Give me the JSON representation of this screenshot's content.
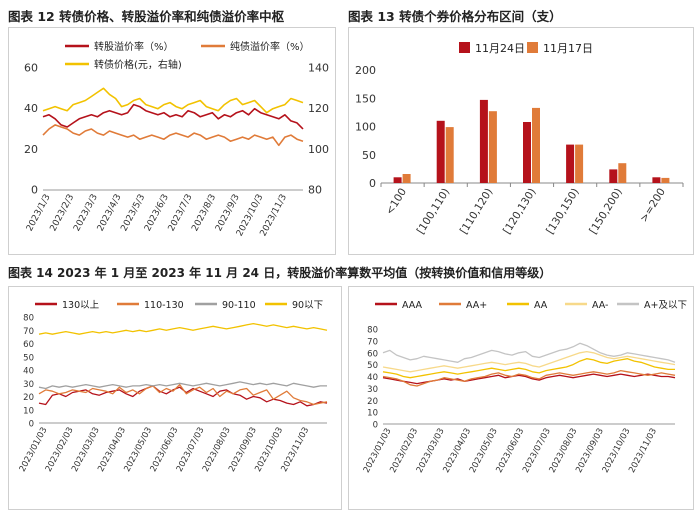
{
  "titles": {
    "fig12": "图表 12  转债价格、转股溢价率和纯债溢价率中枢",
    "fig13": "图表 13  转债个券价格分布区间（支）",
    "fig14": "图表 14  2023 年 1 月至 2023 年 11 月 24 日，转股溢价率算数平均值（按转换价值和信用等级）"
  },
  "colors": {
    "dark_red": "#b5121b",
    "orange": "#e07b39",
    "yellow": "#f2c200",
    "gray": "#a0a0a0",
    "light_yellow": "#f7d98a",
    "light_gray": "#c4c4c4",
    "red": "#c0392b"
  },
  "chart_data": [
    {
      "id": "fig12",
      "type": "line",
      "x_ticks": [
        "2023/1/3",
        "2023/2/3",
        "2023/3/3",
        "2023/4/3",
        "2023/5/3",
        "2023/6/3",
        "2023/7/3",
        "2023/8/3",
        "2023/9/3",
        "2023/10/3",
        "2023/11/3"
      ],
      "left_axis": {
        "ylim": [
          0,
          60
        ],
        "ticks": [
          "0",
          "20",
          "40",
          "60"
        ]
      },
      "right_axis": {
        "ylim": [
          80,
          140
        ],
        "ticks": [
          "80",
          "100",
          "120",
          "140"
        ]
      },
      "legend_placement": "top",
      "series": [
        {
          "name": "转股溢价率（%）",
          "axis": "left",
          "color": "#b5121b",
          "values": [
            36,
            37,
            35,
            32,
            31,
            33,
            35,
            36,
            37,
            36,
            38,
            39,
            38,
            37,
            38,
            42,
            41,
            39,
            38,
            37,
            38,
            36,
            37,
            36,
            39,
            38,
            36,
            37,
            38,
            35,
            37,
            36,
            38,
            39,
            37,
            40,
            38,
            37,
            36,
            35,
            37,
            34,
            33,
            30
          ]
        },
        {
          "name": "纯债溢价率（%）",
          "axis": "left",
          "color": "#e07b39",
          "values": [
            27,
            30,
            32,
            31,
            30,
            28,
            27,
            29,
            30,
            28,
            27,
            29,
            28,
            27,
            26,
            27,
            25,
            26,
            27,
            26,
            25,
            27,
            28,
            27,
            26,
            28,
            27,
            25,
            26,
            27,
            26,
            24,
            25,
            26,
            25,
            27,
            26,
            25,
            26,
            22,
            26,
            27,
            25,
            24
          ]
        },
        {
          "name": "转债价格(元，右轴)",
          "axis": "right",
          "color": "#f2c200",
          "values": [
            119,
            120,
            121,
            120,
            119,
            122,
            123,
            124,
            126,
            128,
            130,
            127,
            125,
            121,
            122,
            124,
            125,
            122,
            121,
            120,
            122,
            123,
            121,
            120,
            122,
            123,
            124,
            121,
            120,
            119,
            122,
            124,
            125,
            122,
            123,
            124,
            121,
            118,
            120,
            121,
            122,
            125,
            124,
            123
          ]
        }
      ]
    },
    {
      "id": "fig13",
      "type": "bar",
      "categories": [
        "<100",
        "[100,110)",
        "[110,120)",
        "[120,130)",
        "[130,150)",
        "[150,200)",
        ">=200"
      ],
      "ylim": [
        0,
        200
      ],
      "y_ticks": [
        "0",
        "50",
        "100",
        "150",
        "200"
      ],
      "legend_placement": "top",
      "series": [
        {
          "name": "11月24日",
          "color": "#b5121b",
          "values": [
            10,
            110,
            147,
            108,
            68,
            24,
            10
          ]
        },
        {
          "name": "11月17日",
          "color": "#e07b39",
          "values": [
            16,
            99,
            127,
            133,
            68,
            35,
            9
          ]
        }
      ]
    },
    {
      "id": "fig14a",
      "type": "line",
      "x_ticks": [
        "2023/01/03",
        "2023/02/03",
        "2023/03/03",
        "2023/04/03",
        "2023/05/03",
        "2023/06/03",
        "2023/07/03",
        "2023/08/03",
        "2023/09/03",
        "2023/10/03",
        "2023/11/03"
      ],
      "ylim": [
        0,
        80
      ],
      "y_ticks": [
        "0",
        "10",
        "20",
        "30",
        "40",
        "50",
        "60",
        "70",
        "80"
      ],
      "legend_placement": "top",
      "series": [
        {
          "name": "130以上",
          "color": "#b5121b",
          "values": [
            15,
            14,
            21,
            22,
            20,
            23,
            24,
            25,
            22,
            21,
            23,
            24,
            25,
            22,
            20,
            24,
            26,
            28,
            24,
            22,
            25,
            27,
            23,
            26,
            24,
            22,
            20,
            24,
            25,
            22,
            21,
            18,
            20,
            19,
            16,
            18,
            17,
            15,
            14,
            16,
            13,
            14,
            16,
            15
          ]
        },
        {
          "name": "110-130",
          "color": "#e07b39",
          "values": [
            22,
            25,
            24,
            22,
            23,
            25,
            24,
            23,
            26,
            25,
            24,
            22,
            27,
            23,
            25,
            22,
            26,
            28,
            23,
            26,
            24,
            29,
            22,
            25,
            27,
            23,
            26,
            20,
            24,
            22,
            25,
            26,
            21,
            23,
            25,
            18,
            21,
            24,
            19,
            17,
            16,
            14,
            15,
            16
          ]
        },
        {
          "name": "90-110",
          "color": "#a0a0a0",
          "values": [
            27,
            26,
            28,
            27,
            28,
            27,
            28,
            29,
            28,
            27,
            28,
            29,
            28,
            27,
            28,
            28,
            29,
            28,
            29,
            28,
            29,
            30,
            29,
            28,
            29,
            30,
            29,
            28,
            29,
            30,
            31,
            30,
            29,
            30,
            29,
            30,
            29,
            28,
            30,
            29,
            28,
            27,
            28,
            28
          ]
        },
        {
          "name": "90以下",
          "color": "#f2c200",
          "values": [
            67,
            68,
            67,
            68,
            69,
            68,
            67,
            68,
            69,
            68,
            69,
            68,
            69,
            70,
            69,
            70,
            69,
            70,
            71,
            70,
            71,
            72,
            71,
            70,
            71,
            72,
            73,
            72,
            71,
            72,
            73,
            74,
            75,
            74,
            73,
            74,
            73,
            72,
            73,
            72,
            71,
            72,
            71,
            70
          ]
        }
      ]
    },
    {
      "id": "fig14b",
      "type": "line",
      "x_ticks": [
        "2023/01/03",
        "2023/02/03",
        "2023/03/03",
        "2023/04/03",
        "2023/05/03",
        "2023/06/03",
        "2023/07/03",
        "2023/08/03",
        "2023/09/03",
        "2023/10/03",
        "2023/11/03"
      ],
      "ylim": [
        0,
        80
      ],
      "y_ticks": [
        "0",
        "10",
        "20",
        "30",
        "40",
        "50",
        "60",
        "70",
        "80"
      ],
      "legend_placement": "top",
      "series": [
        {
          "name": "AAA",
          "color": "#b5121b",
          "values": [
            39,
            38,
            37,
            36,
            35,
            34,
            35,
            36,
            37,
            38,
            37,
            38,
            36,
            37,
            38,
            39,
            40,
            41,
            39,
            40,
            41,
            40,
            38,
            37,
            39,
            40,
            41,
            40,
            39,
            40,
            41,
            42,
            41,
            40,
            41,
            42,
            41,
            40,
            41,
            42,
            41,
            40,
            40,
            39
          ]
        },
        {
          "name": "AA+",
          "color": "#e07b39",
          "values": [
            40,
            39,
            38,
            36,
            33,
            32,
            34,
            36,
            37,
            39,
            38,
            37,
            36,
            38,
            39,
            40,
            42,
            43,
            41,
            40,
            42,
            41,
            39,
            38,
            41,
            42,
            43,
            42,
            41,
            42,
            43,
            44,
            43,
            42,
            43,
            45,
            44,
            43,
            42,
            41,
            42,
            43,
            42,
            41
          ]
        },
        {
          "name": "AA",
          "color": "#f2c200",
          "values": [
            44,
            43,
            42,
            40,
            39,
            40,
            41,
            42,
            43,
            44,
            43,
            42,
            43,
            44,
            45,
            46,
            47,
            46,
            45,
            46,
            47,
            46,
            44,
            43,
            45,
            46,
            47,
            48,
            50,
            53,
            55,
            54,
            52,
            51,
            53,
            54,
            55,
            53,
            52,
            50,
            48,
            47,
            46,
            46
          ]
        },
        {
          "name": "AA-",
          "color": "#f7d98a",
          "values": [
            48,
            47,
            46,
            45,
            44,
            45,
            46,
            47,
            48,
            49,
            48,
            47,
            48,
            49,
            50,
            51,
            52,
            51,
            50,
            51,
            52,
            51,
            49,
            48,
            50,
            52,
            54,
            56,
            58,
            60,
            61,
            60,
            58,
            56,
            55,
            56,
            57,
            56,
            55,
            54,
            53,
            52,
            51,
            50
          ]
        },
        {
          "name": "A+及以下",
          "color": "#c4c4c4",
          "values": [
            60,
            62,
            58,
            56,
            54,
            55,
            57,
            56,
            55,
            54,
            53,
            52,
            55,
            56,
            58,
            60,
            62,
            61,
            59,
            58,
            60,
            61,
            57,
            56,
            58,
            60,
            62,
            63,
            65,
            68,
            66,
            63,
            60,
            58,
            57,
            58,
            60,
            59,
            58,
            57,
            56,
            55,
            54,
            52
          ]
        }
      ]
    }
  ]
}
